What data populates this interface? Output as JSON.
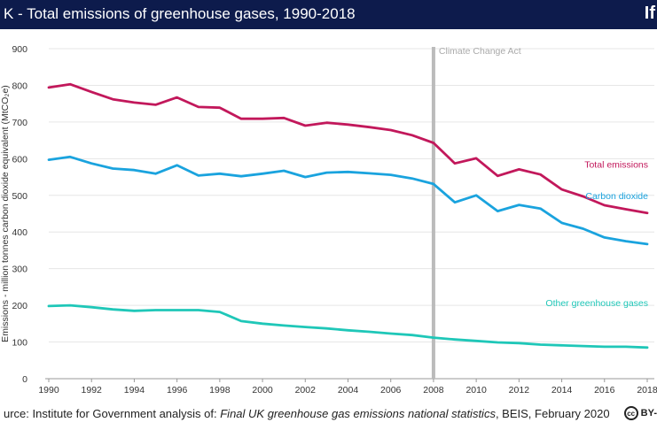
{
  "header": {
    "title": "K - Total emissions of greenhouse gases, 1990-2018",
    "logo": "If"
  },
  "footer": {
    "prefix": "urce: Institute for Government analysis of: ",
    "source_title": "Final UK greenhouse gas emissions national statistics",
    "suffix": ", BEIS, February 2020",
    "license_icon": "cc-icon",
    "license": "BY-"
  },
  "chart_data": {
    "type": "line",
    "ylabel": "Emissions - million tonnes carbon dioxide equivalent (MtCO₂e)",
    "ylim": [
      0,
      900
    ],
    "yticks": [
      0,
      100,
      200,
      300,
      400,
      500,
      600,
      700,
      800,
      900
    ],
    "xlim": [
      1990,
      2018
    ],
    "xticks": [
      1990,
      1992,
      1994,
      1996,
      1998,
      2000,
      2002,
      2004,
      2006,
      2008,
      2010,
      2012,
      2014,
      2016,
      2018
    ],
    "x": [
      1990,
      1991,
      1992,
      1993,
      1994,
      1995,
      1996,
      1997,
      1998,
      1999,
      2000,
      2001,
      2002,
      2003,
      2004,
      2005,
      2006,
      2007,
      2008,
      2009,
      2010,
      2011,
      2012,
      2013,
      2014,
      2015,
      2016,
      2017,
      2018
    ],
    "series": [
      {
        "name": "Total emissions",
        "color": "#c2185b",
        "values": [
          794,
          803,
          782,
          762,
          753,
          747,
          767,
          741,
          739,
          709,
          709,
          711,
          690,
          698,
          693,
          686,
          678,
          664,
          643,
          587,
          601,
          553,
          571,
          557,
          516,
          497,
          473,
          462,
          452
        ]
      },
      {
        "name": "Carbon dioxide",
        "color": "#1aa3de",
        "values": [
          597,
          605,
          587,
          573,
          569,
          559,
          582,
          554,
          559,
          552,
          559,
          567,
          550,
          562,
          564,
          560,
          556,
          546,
          531,
          481,
          500,
          457,
          474,
          464,
          425,
          409,
          385,
          375,
          367
        ]
      },
      {
        "name": "Other greenhouse gases",
        "color": "#1fc7b8",
        "values": [
          198,
          200,
          195,
          189,
          185,
          187,
          187,
          187,
          182,
          157,
          150,
          145,
          141,
          137,
          132,
          128,
          123,
          119,
          112,
          107,
          103,
          99,
          97,
          93,
          91,
          89,
          87,
          87,
          85
        ]
      }
    ],
    "annotations": [
      {
        "x": 2008,
        "label": "Climate Change Act",
        "color": "#bbbbbb"
      }
    ],
    "grid": "horizontal"
  }
}
